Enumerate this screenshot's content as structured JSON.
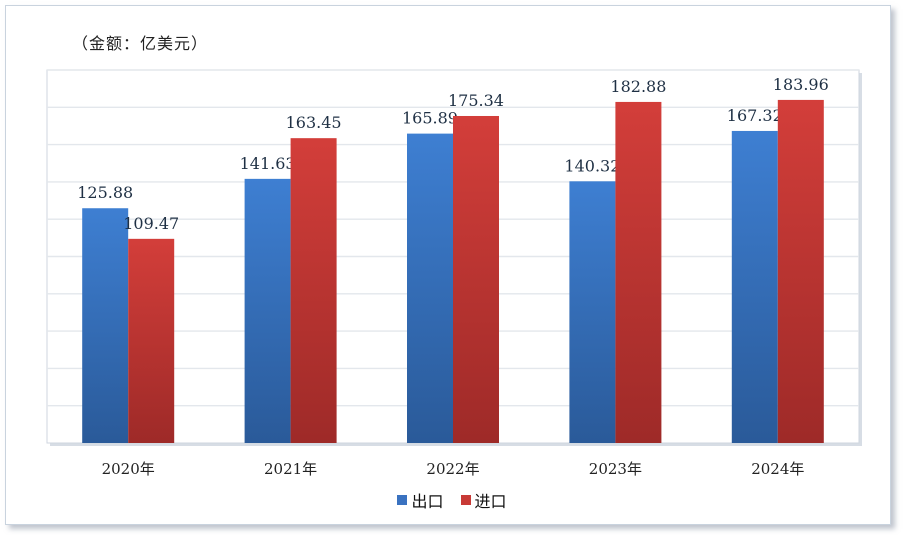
{
  "unit_label": "（金额：亿美元）",
  "chart_data": {
    "type": "bar",
    "categories": [
      "2020年",
      "2021年",
      "2022年",
      "2023年",
      "2024年"
    ],
    "series": [
      {
        "name": "出口",
        "values": [
          125.88,
          141.63,
          165.89,
          140.32,
          167.32
        ],
        "color": "#3a72c0"
      },
      {
        "name": "进口",
        "values": [
          109.47,
          163.45,
          175.34,
          182.88,
          183.96
        ],
        "color": "#c83a36"
      }
    ],
    "ylim": [
      0,
      200
    ],
    "grid": true,
    "legend_position": "bottom"
  }
}
